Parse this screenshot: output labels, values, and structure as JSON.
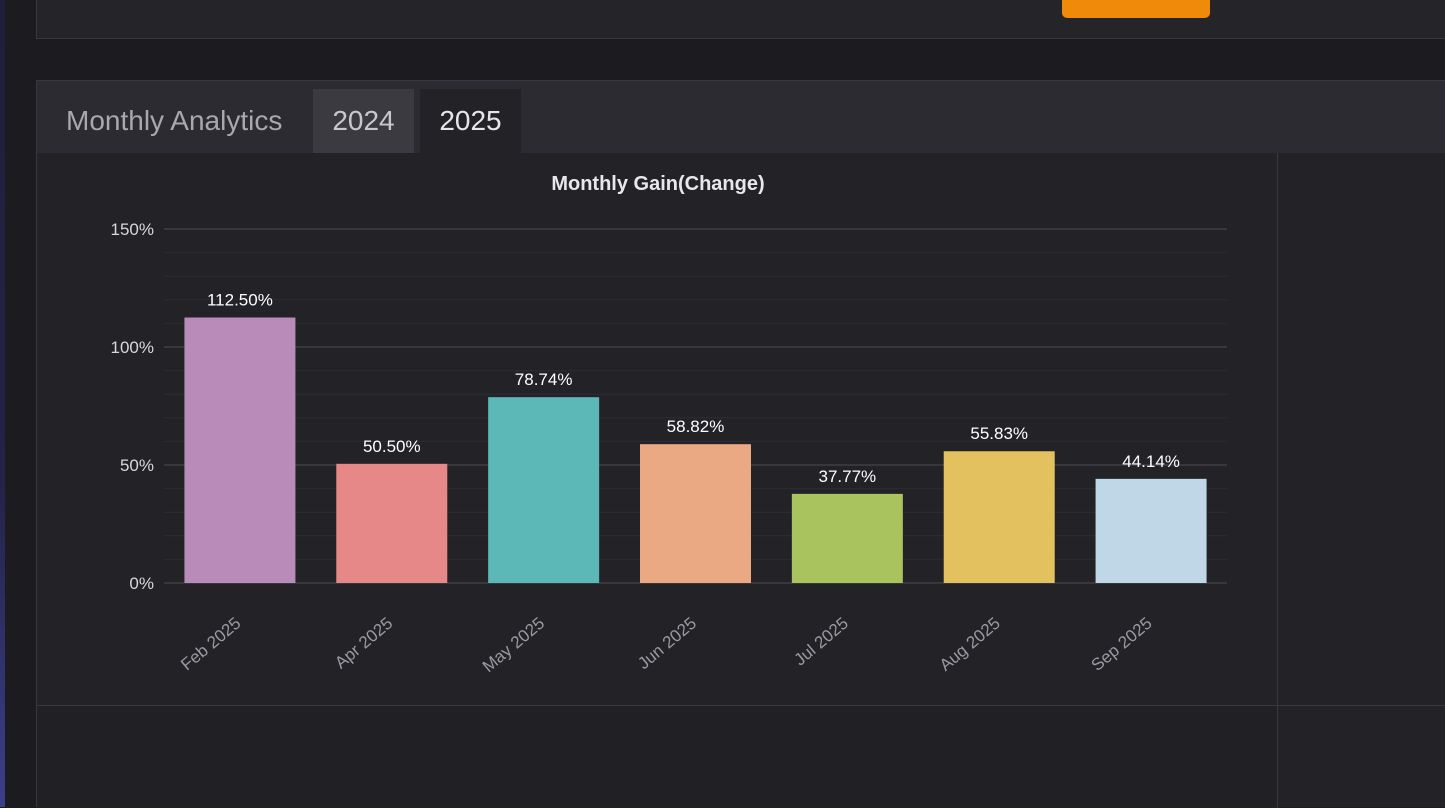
{
  "header": {
    "section_title": "Monthly Analytics",
    "tabs": [
      {
        "label": "2024",
        "active": false
      },
      {
        "label": "2025",
        "active": true
      }
    ],
    "accent_color": "#ef8a0a"
  },
  "chart_data": {
    "type": "bar",
    "title": "Monthly Gain(Change)",
    "xlabel": "",
    "ylabel": "",
    "ylim": [
      0,
      150
    ],
    "y_ticks": [
      0,
      50,
      100,
      150
    ],
    "y_tick_labels": [
      "0%",
      "50%",
      "100%",
      "150%"
    ],
    "grid": true,
    "categories": [
      "Feb 2025",
      "Apr 2025",
      "May 2025",
      "Jun 2025",
      "Jul 2025",
      "Aug 2025",
      "Sep 2025"
    ],
    "values": [
      112.5,
      50.5,
      78.74,
      58.82,
      37.77,
      55.83,
      44.14
    ],
    "value_labels": [
      "112.50%",
      "50.50%",
      "78.74%",
      "58.82%",
      "37.77%",
      "55.83%",
      "44.14%"
    ],
    "colors": [
      "#b98bb9",
      "#e78888",
      "#5cb7b7",
      "#eaa982",
      "#a9c35e",
      "#e2c15e",
      "#bfd7e6"
    ]
  }
}
